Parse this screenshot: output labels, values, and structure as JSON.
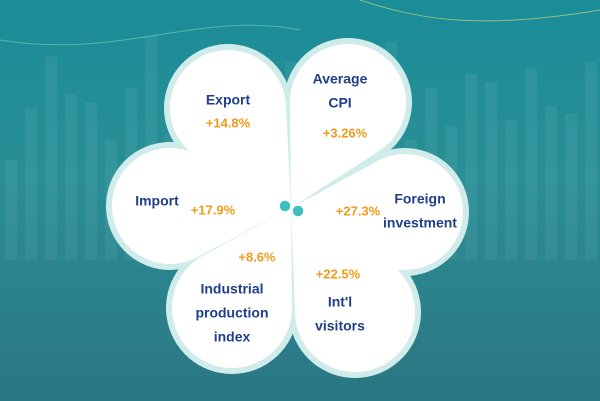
{
  "petals": [
    {
      "label": [
        "Export"
      ],
      "value": "+14.8%"
    },
    {
      "label": [
        "Average",
        "CPI"
      ],
      "value": "+3.26%"
    },
    {
      "label": [
        "Foreign",
        "investment"
      ],
      "value": "+27.3%"
    },
    {
      "label": [
        "Import"
      ],
      "value": "+17.9%"
    },
    {
      "label": [
        "Industrial",
        "production",
        "index"
      ],
      "value": "+8.6%"
    },
    {
      "label": [
        "Int'l",
        "visitors"
      ],
      "value": "+22.5%"
    }
  ]
}
